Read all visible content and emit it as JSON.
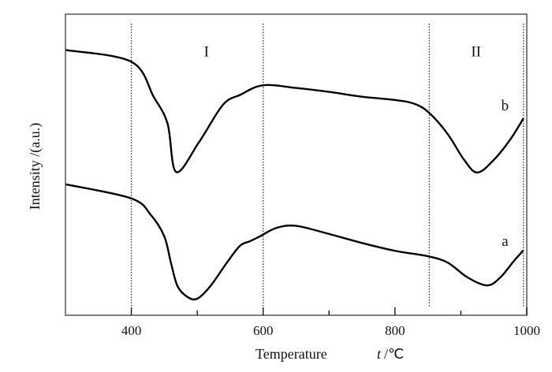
{
  "chart_data": {
    "type": "line",
    "title": "",
    "xlabel": "Temperature",
    "xunit_symbol": "t",
    "xunit": "/℃",
    "ylabel": "Intensity /(a.u.)",
    "xlim": [
      300,
      1000
    ],
    "ylim": [
      0,
      100
    ],
    "xticks": [
      400,
      600,
      800,
      1000
    ],
    "xminor_ticks": [
      500,
      700,
      900
    ],
    "grid": false,
    "vlines": [
      400,
      600,
      852,
      995
    ],
    "regions": [
      {
        "label": "I",
        "x": 514,
        "y": 86
      },
      {
        "label": "II",
        "x": 923,
        "y": 86
      }
    ],
    "series": [
      {
        "name": "b",
        "label_pos": {
          "x": 967,
          "y": 68
        },
        "x": [
          300,
          400,
          434,
          455,
          468,
          503,
          539,
          566,
          600,
          650,
          700,
          750,
          800,
          830,
          852,
          880,
          905,
          925,
          950,
          975,
          995
        ],
        "y": [
          88.1,
          84.2,
          72.5,
          63.6,
          47.6,
          57.6,
          69.9,
          73.3,
          76.4,
          75.5,
          74.2,
          72.6,
          71.5,
          70.2,
          67.2,
          60.2,
          51.6,
          47.4,
          51.6,
          58.4,
          65.4
        ]
      },
      {
        "name": "a",
        "label_pos": {
          "x": 967,
          "y": 23
        },
        "x": [
          300,
          400,
          430,
          450,
          460,
          470,
          485,
          500,
          520,
          545,
          565,
          580,
          595,
          620,
          650,
          700,
          750,
          800,
          850,
          880,
          910,
          940,
          960,
          980,
          995
        ],
        "y": [
          43.5,
          38.8,
          33.2,
          26.2,
          17.5,
          9.7,
          6.1,
          5.5,
          9.7,
          17.5,
          23.1,
          24.6,
          26.2,
          29,
          29.7,
          27,
          24,
          21.4,
          19.6,
          17.5,
          12.6,
          9.9,
          12.6,
          17.9,
          21.6
        ]
      }
    ],
    "colors": {
      "line": "#000000",
      "axis": "#555555",
      "vline": "#222222"
    }
  }
}
